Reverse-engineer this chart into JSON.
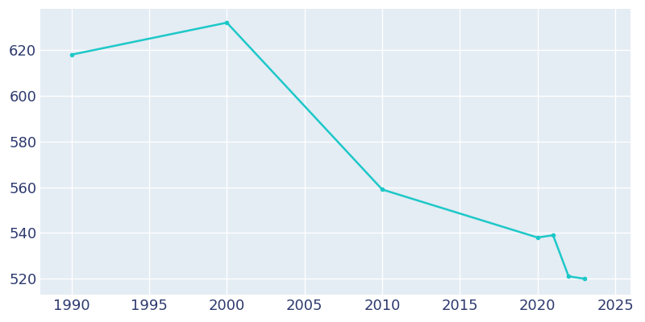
{
  "years": [
    1990,
    2000,
    2010,
    2020,
    2021,
    2022,
    2023
  ],
  "population": [
    618,
    632,
    559,
    538,
    539,
    521,
    520
  ],
  "line_color": "#1DC8C8",
  "bg_color": "#E4ECF4",
  "fig_bg_color": "#FFFFFF",
  "grid_color": "#FFFFFF",
  "text_color": "#2E3A6E",
  "xlim": [
    1988,
    2026
  ],
  "ylim": [
    513,
    638
  ],
  "xticks": [
    1990,
    1995,
    2000,
    2005,
    2010,
    2015,
    2020,
    2025
  ],
  "yticks": [
    520,
    540,
    560,
    580,
    600,
    620
  ],
  "linewidth": 1.8,
  "tick_labelsize": 13
}
